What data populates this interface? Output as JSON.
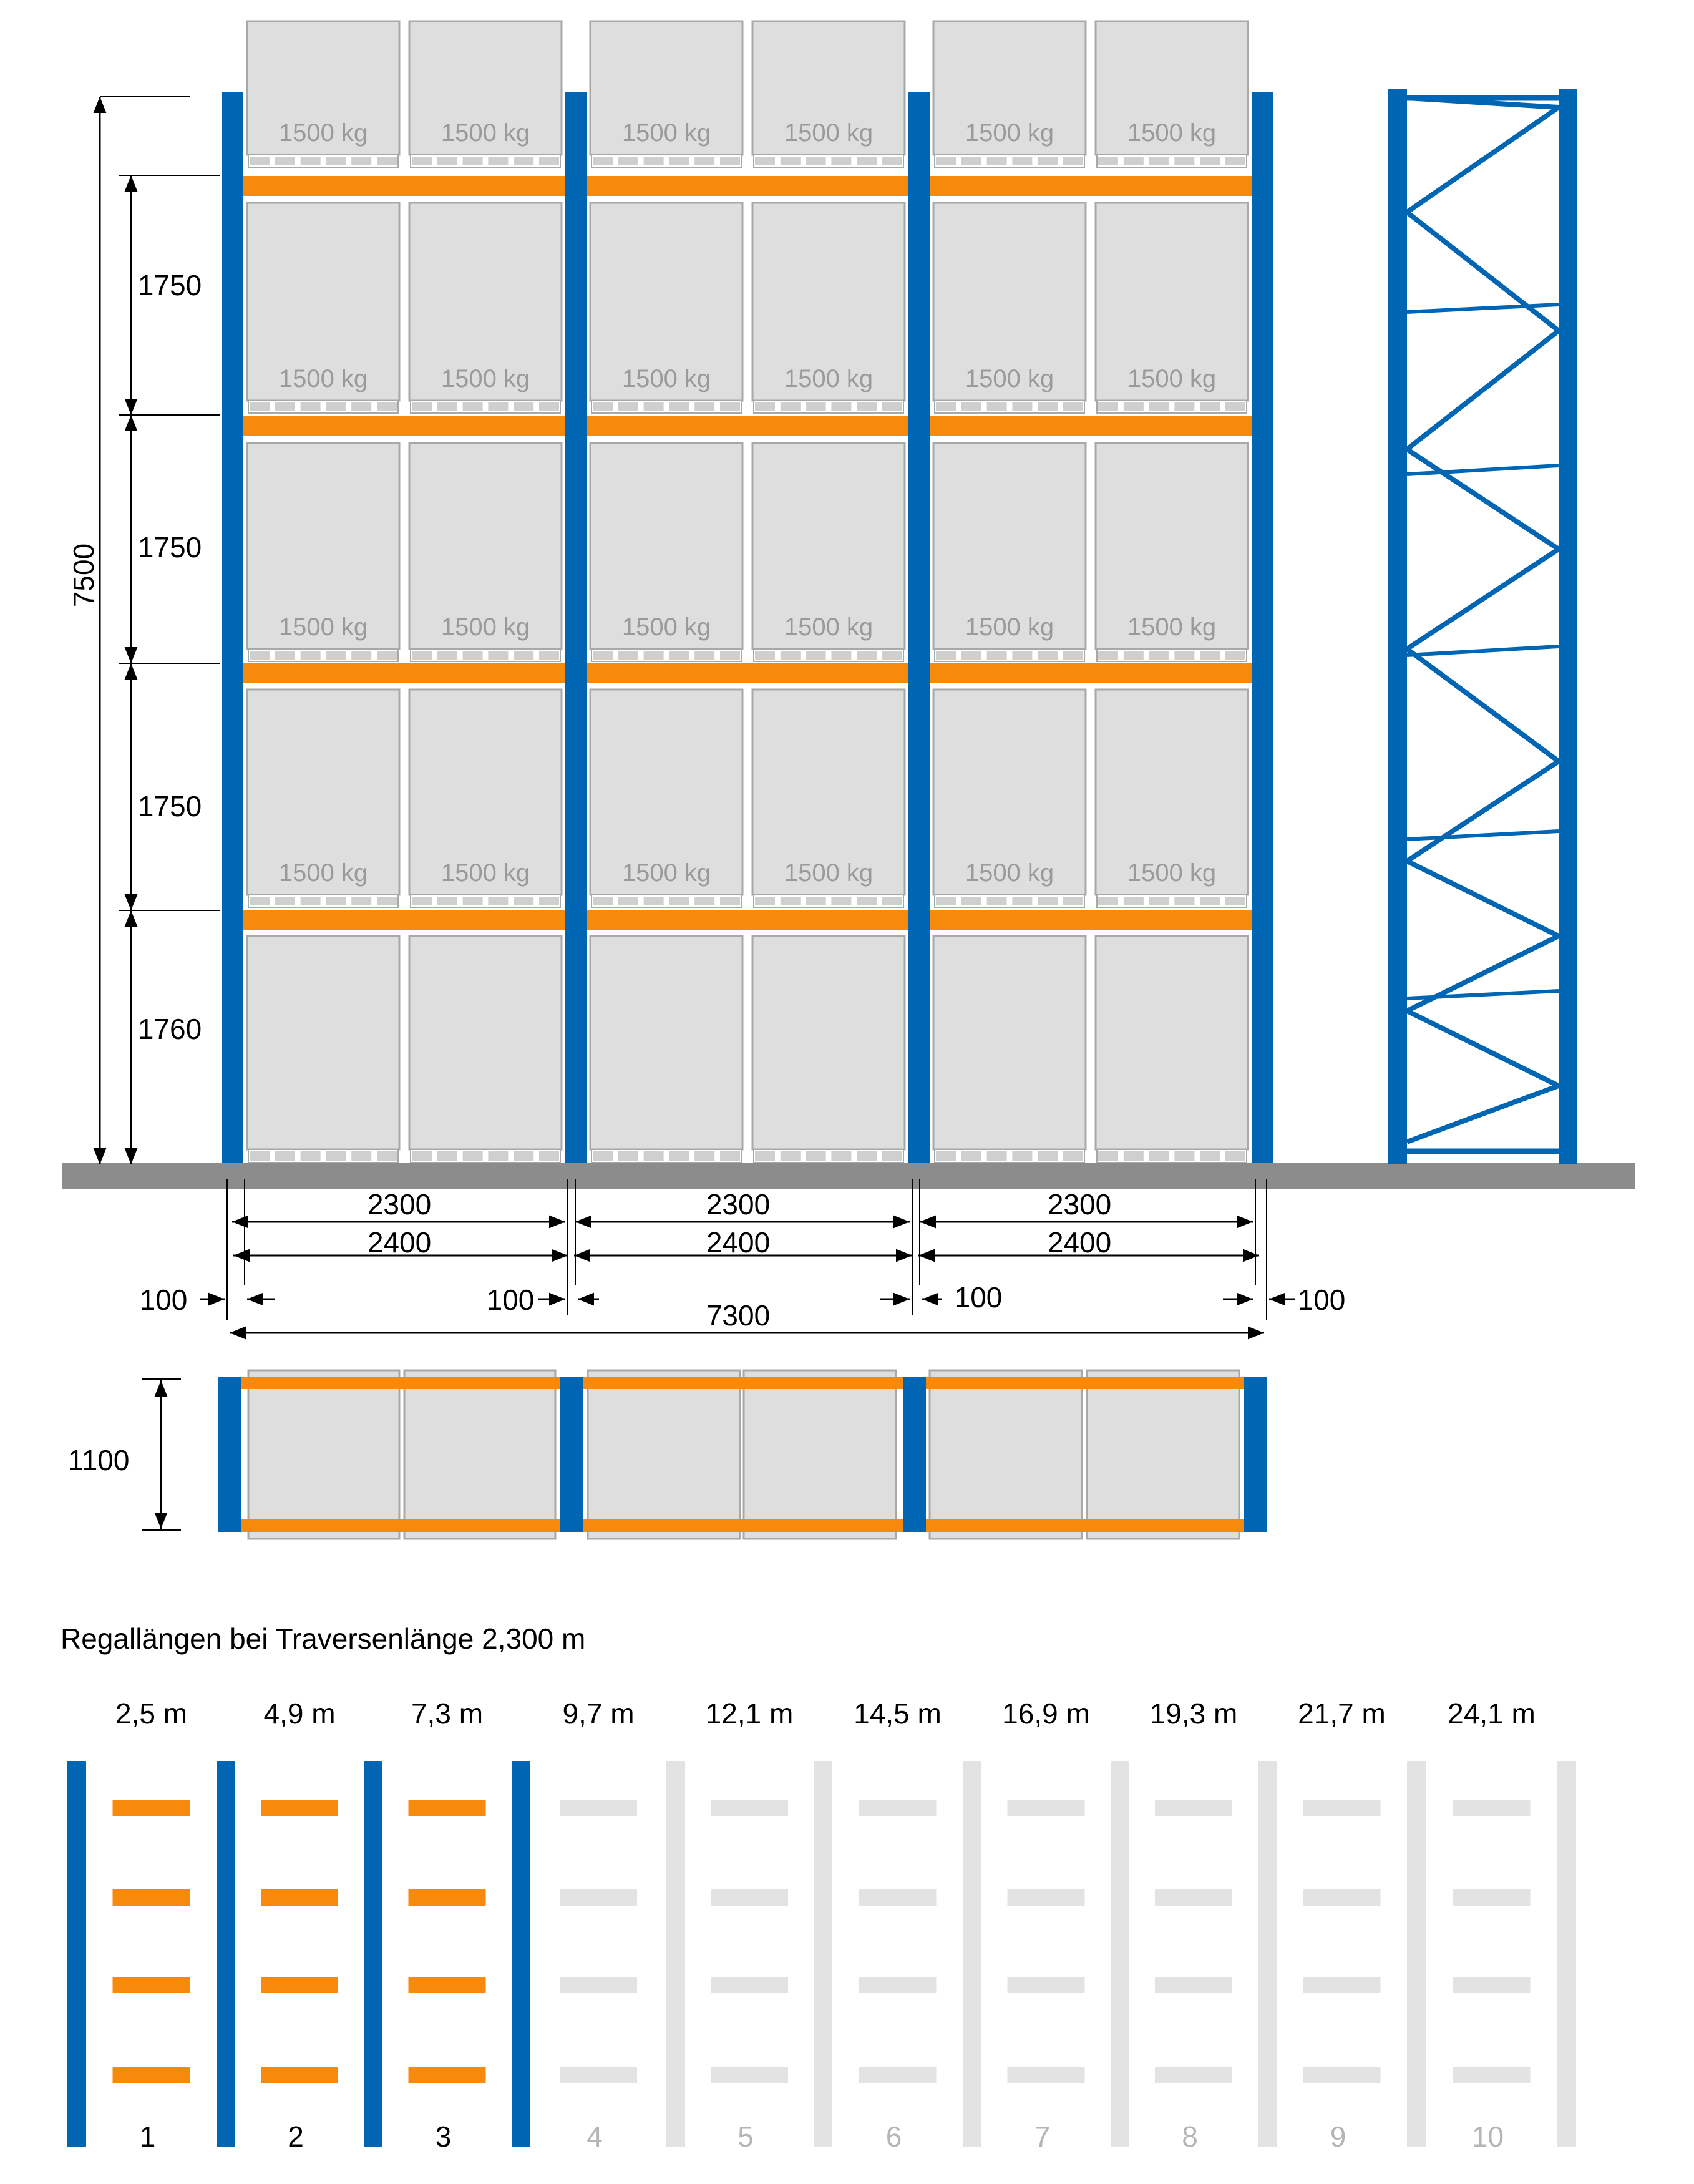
{
  "colors": {
    "upright_blue": "#0066b3",
    "beam_orange": "#f7890d",
    "pallet_fill": "#dedede",
    "pallet_stroke": "#a8a8a8",
    "floor_gray": "#8c8c8c",
    "inactive_gray": "#e3e3e3",
    "dim_line": "#000000",
    "load_text": "#9a9a9a",
    "inactive_text": "#b5b5b5"
  },
  "elevation": {
    "load_label": "1500 kg",
    "total_height": "7500",
    "level_heights": [
      "1750",
      "1750",
      "1750",
      "1760"
    ],
    "bays": [
      {
        "clear": "2300",
        "axis": "2400"
      },
      {
        "clear": "2300",
        "axis": "2400"
      },
      {
        "clear": "2300",
        "axis": "2400"
      }
    ],
    "offset_left": "100",
    "offset_mid_1": "100",
    "offset_mid_2": "100",
    "offset_right": "100",
    "total_length": "7300"
  },
  "plan": {
    "depth": "1100"
  },
  "lengths": {
    "title": "Regallängen bei Traversenlänge 2,300 m",
    "active_count": 3,
    "bays": [
      {
        "number": "1",
        "length": "2,5 m"
      },
      {
        "number": "2",
        "length": "4,9 m"
      },
      {
        "number": "3",
        "length": "7,3 m"
      },
      {
        "number": "4",
        "length": "9,7 m"
      },
      {
        "number": "5",
        "length": "12,1 m"
      },
      {
        "number": "6",
        "length": "14,5 m"
      },
      {
        "number": "7",
        "length": "16,9 m"
      },
      {
        "number": "8",
        "length": "19,3 m"
      },
      {
        "number": "9",
        "length": "21,7 m"
      },
      {
        "number": "10",
        "length": "24,1 m"
      }
    ]
  }
}
